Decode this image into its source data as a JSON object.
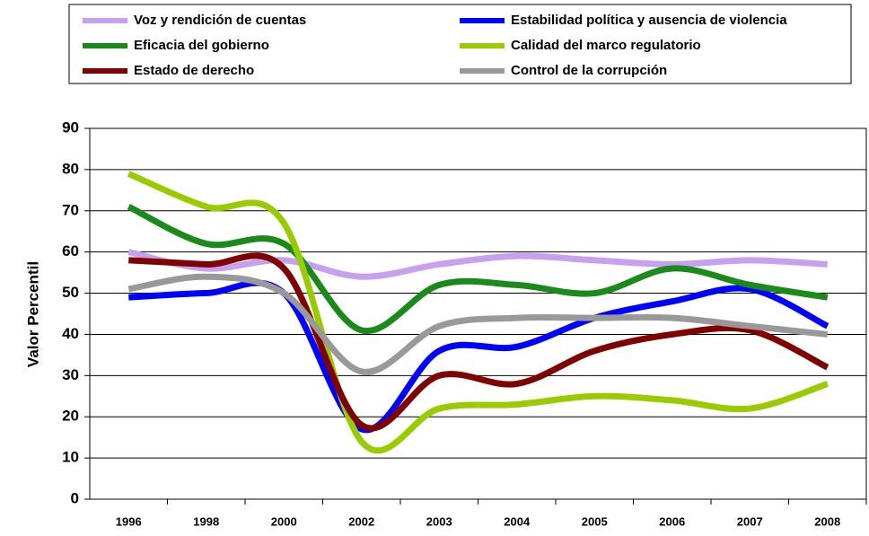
{
  "chart_data": {
    "type": "line",
    "y_label": "Valor Percentil",
    "categories": [
      "1996",
      "1998",
      "2000",
      "2002",
      "2003",
      "2004",
      "2005",
      "2006",
      "2007",
      "2008"
    ],
    "ylim": [
      0,
      90
    ],
    "yticks": [
      0,
      10,
      20,
      30,
      40,
      50,
      60,
      70,
      80,
      90
    ],
    "grid": true,
    "legend": "top",
    "series": [
      {
        "name": "Voz y rendición de cuentas",
        "color": "#c8a0f0",
        "values": [
          60,
          56,
          58,
          54,
          57,
          59,
          58,
          57,
          58,
          57
        ]
      },
      {
        "name": "Estabilidad política y ausencia de violencia",
        "color": "#0000ff",
        "values": [
          49,
          50,
          50,
          17,
          36,
          37,
          44,
          48,
          51,
          42
        ]
      },
      {
        "name": "Eficacia del gobierno",
        "color": "#1a8a1a",
        "values": [
          71,
          62,
          62,
          41,
          52,
          52,
          50,
          56,
          52,
          49
        ]
      },
      {
        "name": "Calidad del marco regulatorio",
        "color": "#99cc00",
        "values": [
          79,
          71,
          67,
          14,
          22,
          23,
          25,
          24,
          22,
          28
        ]
      },
      {
        "name": "Estado de derecho",
        "color": "#800000",
        "values": [
          58,
          57,
          56,
          18,
          30,
          28,
          36,
          40,
          41,
          32
        ]
      },
      {
        "name": "Control de la corrupción",
        "color": "#999999",
        "values": [
          51,
          54,
          50,
          31,
          42,
          44,
          44,
          44,
          42,
          40
        ]
      }
    ]
  }
}
